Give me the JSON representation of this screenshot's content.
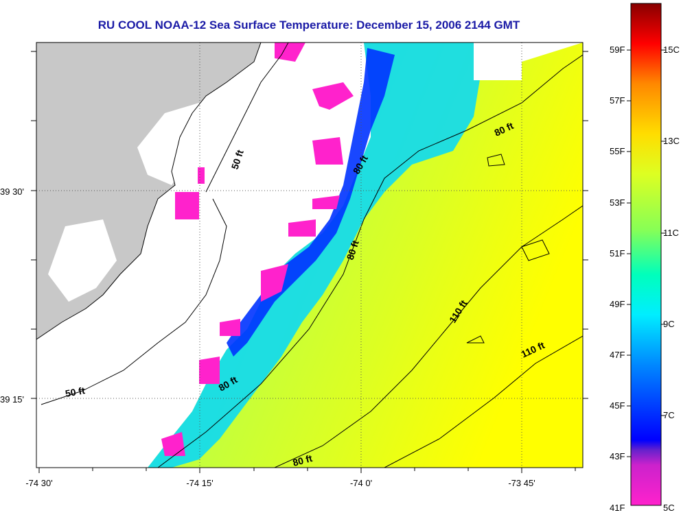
{
  "title": "RU COOL  NOAA-12  Sea Surface Temperature:  December 15, 2006 2144 GMT",
  "longitude_labels": [
    "-74 30'",
    "-74 15'",
    "-74 0'",
    "-73 45'"
  ],
  "latitude_labels": [
    "39 30'",
    "39 15'"
  ],
  "contour_labels": [
    "50 ft",
    "80 ft",
    "80 ft",
    "80 ft",
    "80 ft",
    "110 ft",
    "110 ft",
    "50 ft",
    "80 ft"
  ],
  "colorbar": {
    "fahrenheit_labels": [
      "59F",
      "57F",
      "55F",
      "53F",
      "51F",
      "49F",
      "47F",
      "45F",
      "43F",
      "41F"
    ],
    "celsius_labels": [
      "15C",
      "13C",
      "11C",
      "9C",
      "7C",
      "5C"
    ],
    "colors": [
      "#ff22cc",
      "#8833cc",
      "#0000ff",
      "#00c8ff",
      "#00ffcc",
      "#66ff66",
      "#ccff33",
      "#ffff00",
      "#ff9900",
      "#ff0000",
      "#880000"
    ]
  },
  "colors": {
    "land": "#c8c8c8",
    "cloud_no_data": "#ffffff",
    "title": "#1a1aa6"
  }
}
